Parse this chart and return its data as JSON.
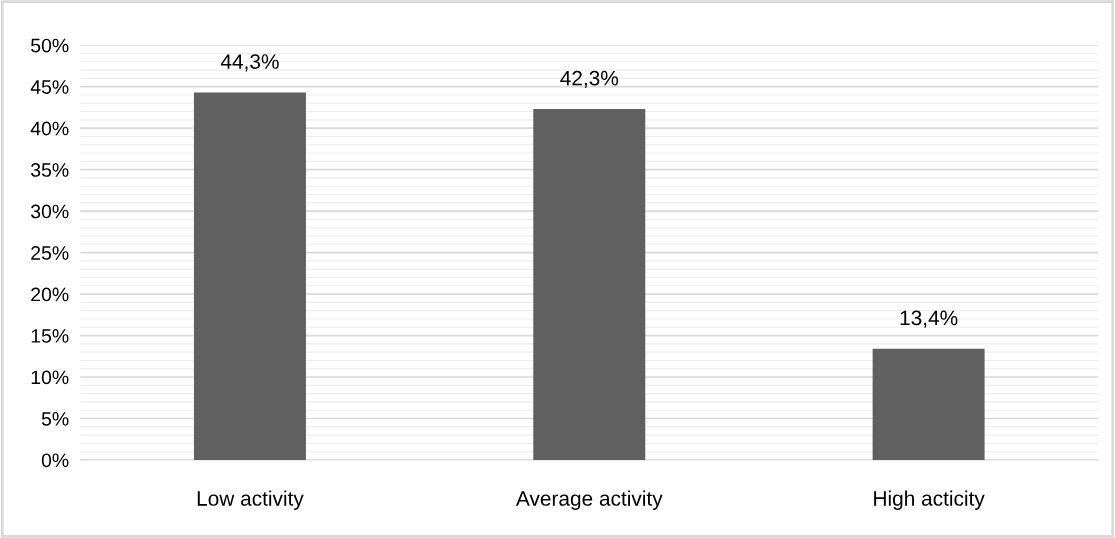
{
  "chart_data": {
    "type": "bar",
    "categories": [
      "Low activity",
      "Average activity",
      "High acticity"
    ],
    "values": [
      44.3,
      42.3,
      13.4
    ],
    "color": "#606060",
    "value_labels": [
      "44,3%",
      "42,3%",
      "13,4%"
    ],
    "ylim": [
      0,
      50
    ],
    "yticks": [
      {
        "value": 0,
        "label": "0%"
      },
      {
        "value": 5,
        "label": "5%"
      },
      {
        "value": 10,
        "label": "10%"
      },
      {
        "value": 15,
        "label": "15%"
      },
      {
        "value": 20,
        "label": "20%"
      },
      {
        "value": 25,
        "label": "25%"
      },
      {
        "value": 30,
        "label": "30%"
      },
      {
        "value": 35,
        "label": "35%"
      },
      {
        "value": 40,
        "label": "40%"
      },
      {
        "value": 45,
        "label": "45%"
      },
      {
        "value": 50,
        "label": "50%"
      }
    ],
    "grid": "y",
    "legend": false
  }
}
